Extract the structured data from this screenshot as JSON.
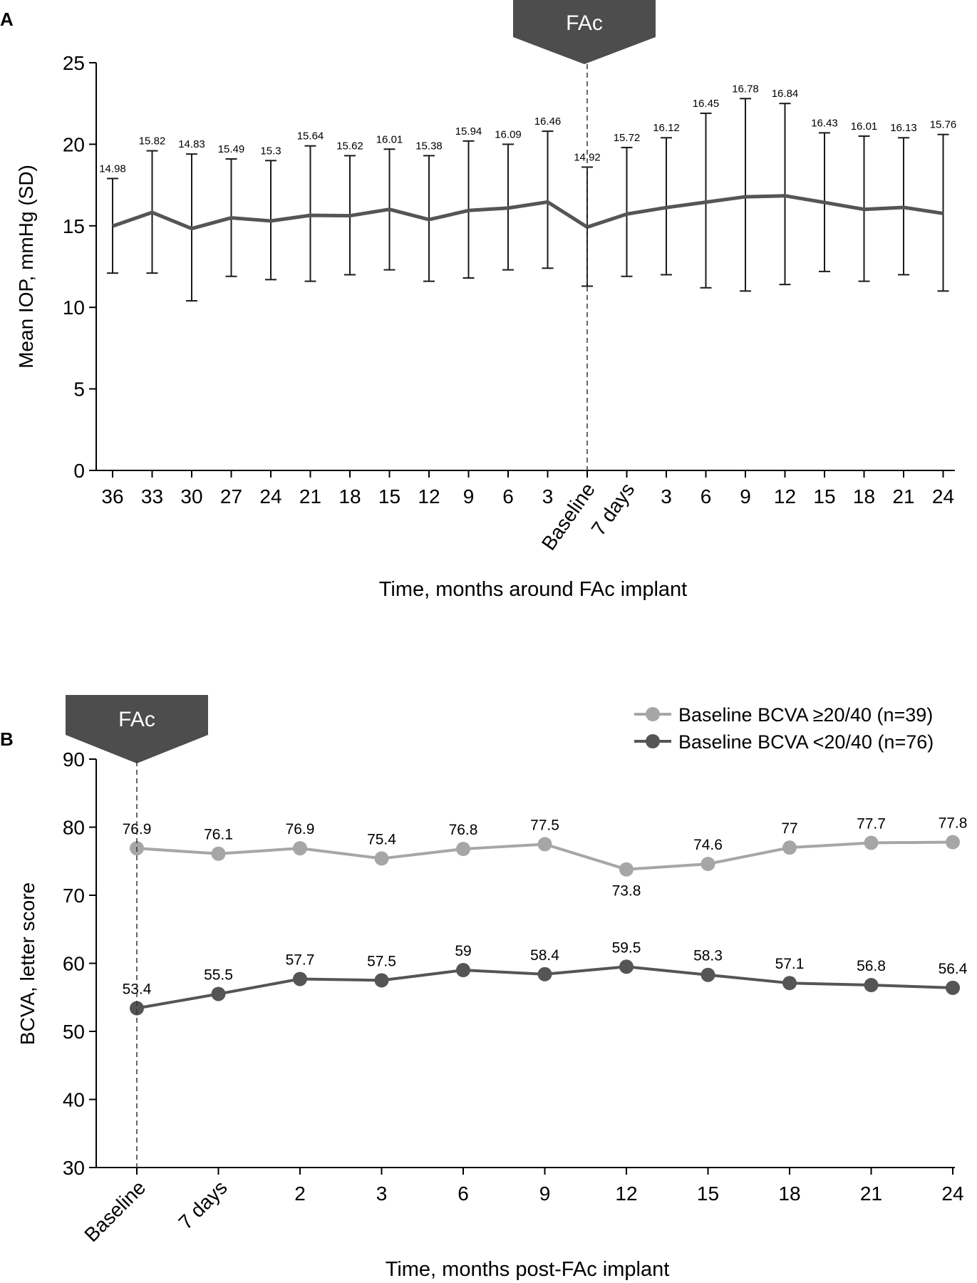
{
  "panel_labels": {
    "a": "A",
    "b": "B"
  },
  "colors": {
    "dark": "#555555",
    "light": "#a6a6a6",
    "axis": "#000000",
    "banner": "#4d4d4d"
  },
  "chart_data": [
    {
      "type": "line",
      "panel": "A",
      "banner": "FAc",
      "xlabel": "Time, months around FAc implant",
      "ylabel": "Mean IOP, mmHg (SD)",
      "ylim": [
        0,
        25
      ],
      "yticks": [
        "0",
        "5",
        "10",
        "15",
        "20",
        "25"
      ],
      "categories": [
        "36",
        "33",
        "30",
        "27",
        "24",
        "21",
        "18",
        "15",
        "12",
        "9",
        "6",
        "3",
        "Baseline",
        "7 days",
        "3",
        "6",
        "9",
        "12",
        "15",
        "18",
        "21",
        "24"
      ],
      "rotated_categories": [
        "Baseline",
        "7 days"
      ],
      "marker_category": "Baseline",
      "series": [
        {
          "values": [
            14.98,
            15.82,
            14.83,
            15.49,
            15.3,
            15.64,
            15.62,
            16.01,
            15.38,
            15.94,
            16.09,
            16.46,
            14.92,
            15.72,
            16.12,
            16.45,
            16.78,
            16.84,
            16.43,
            16.01,
            16.13,
            15.76
          ],
          "labels": [
            "14.98",
            "15.82",
            "14.83",
            "15.49",
            "15.3",
            "15.64",
            "15.62",
            "16.01",
            "15.38",
            "15.94",
            "16.09",
            "16.46",
            "14.92",
            "15.72",
            "16.12",
            "16.45",
            "16.78",
            "16.84",
            "16.43",
            "16.01",
            "16.13",
            "15.76"
          ],
          "error_upper": [
            17.9,
            19.6,
            19.4,
            19.1,
            19.0,
            19.9,
            19.3,
            19.7,
            19.3,
            20.2,
            20.0,
            20.8,
            18.6,
            19.8,
            20.4,
            21.9,
            22.8,
            22.5,
            20.7,
            20.5,
            20.4,
            20.6
          ],
          "error_lower": [
            12.1,
            12.1,
            10.4,
            11.9,
            11.7,
            11.6,
            12.0,
            12.3,
            11.6,
            11.8,
            12.3,
            12.4,
            11.3,
            11.9,
            12.0,
            11.2,
            11.0,
            11.4,
            12.2,
            11.6,
            12.0,
            11.0
          ]
        }
      ]
    },
    {
      "type": "line",
      "panel": "B",
      "banner": "FAc",
      "xlabel": "Time, months post-FAc implant",
      "ylabel": "BCVA, letter score",
      "ylim": [
        30,
        90
      ],
      "yticks": [
        "30",
        "40",
        "50",
        "60",
        "70",
        "80",
        "90"
      ],
      "categories": [
        "Baseline",
        "7 days",
        "2",
        "3",
        "6",
        "9",
        "12",
        "15",
        "18",
        "21",
        "24"
      ],
      "rotated_categories": [
        "Baseline",
        "7 days"
      ],
      "marker_category": "Baseline",
      "legend_position": "top-right",
      "series": [
        {
          "name": "Baseline BCVA ≥20/40 (n=39)",
          "color": "#a6a6a6",
          "values": [
            76.9,
            76.1,
            76.9,
            75.4,
            76.8,
            77.5,
            73.8,
            74.6,
            77,
            77.7,
            77.8
          ],
          "labels": [
            "76.9",
            "76.1",
            "76.9",
            "75.4",
            "76.8",
            "77.5",
            "73.8",
            "74.6",
            "77",
            "77.7",
            "77.8"
          ],
          "label_side": [
            "above",
            "above",
            "above",
            "above",
            "above",
            "above",
            "below",
            "above",
            "above",
            "above",
            "above"
          ]
        },
        {
          "name": "Baseline BCVA <20/40 (n=76)",
          "color": "#555555",
          "values": [
            53.4,
            55.5,
            57.7,
            57.5,
            59,
            58.4,
            59.5,
            58.3,
            57.1,
            56.8,
            56.4
          ],
          "labels": [
            "53.4",
            "55.5",
            "57.7",
            "57.5",
            "59",
            "58.4",
            "59.5",
            "58.3",
            "57.1",
            "56.8",
            "56.4"
          ],
          "label_side": [
            "above",
            "above",
            "above",
            "above",
            "above",
            "above",
            "above",
            "above",
            "above",
            "above",
            "above"
          ]
        }
      ]
    }
  ]
}
